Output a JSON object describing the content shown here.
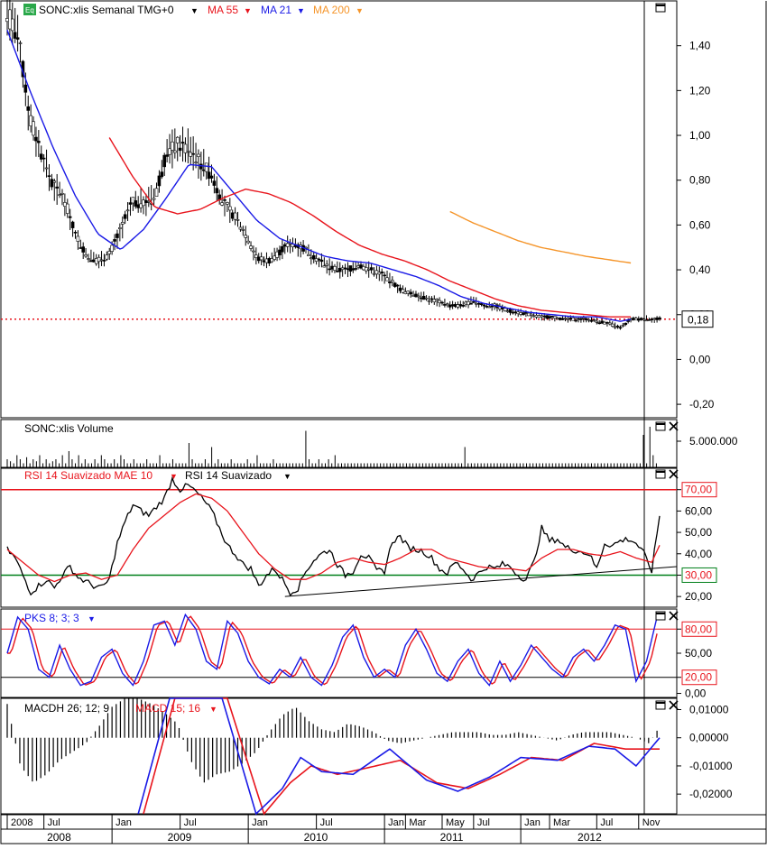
{
  "main": {
    "badge": "Eq",
    "label": "SONC:xlis Semanal TMG+0",
    "indicators": [
      {
        "label": "MA 55",
        "color": "#e8141c"
      },
      {
        "label": "MA 21",
        "color": "#1a1ae6"
      },
      {
        "label": "MA 200",
        "color": "#f5952a"
      }
    ]
  },
  "volume": {
    "label": "SONC:xlis Volume"
  },
  "rsi": {
    "label_red": "RSI 14 Suavizado MAE 10",
    "label_black": "RSI 14 Suavizado"
  },
  "pks": {
    "label": "PKS 8; 3; 3"
  },
  "macd": {
    "label_a": "MACDH 26; 12; 9",
    "label_b": "MACD 15; 16"
  },
  "colors": {
    "price": "#000000",
    "ma55": "#e8141c",
    "ma21": "#1a1ae6",
    "ma200": "#f5952a",
    "green_line": "#00801a",
    "signal": "#e8141c"
  },
  "chart_data": [
    {
      "type": "line",
      "title": "SONC:xlis Semanal TMG+0",
      "ylim": [
        -0.26,
        1.6
      ],
      "yticks": [
        "1,40",
        "1,20",
        "1,00",
        "0,80",
        "0,60",
        "0,40",
        "0,20",
        "0,00",
        "-0,20"
      ],
      "last_value_label": "0,18",
      "last_value": 0.18,
      "series": [
        {
          "name": "SONC:xlis",
          "x": [
            "2008-04",
            "2008-05",
            "2008-06",
            "2008-07",
            "2008-08",
            "2008-09",
            "2008-10",
            "2008-11",
            "2008-12",
            "2009-01",
            "2009-02",
            "2009-03",
            "2009-04",
            "2009-05",
            "2009-06",
            "2009-07",
            "2009-08",
            "2009-09",
            "2009-10",
            "2009-11",
            "2009-12",
            "2010-01",
            "2010-02",
            "2010-03",
            "2010-04",
            "2010-05",
            "2010-06",
            "2010-07",
            "2010-08",
            "2010-09",
            "2010-10",
            "2010-11",
            "2010-12",
            "2011-01",
            "2011-02",
            "2011-03",
            "2011-04",
            "2011-05",
            "2011-06",
            "2011-07",
            "2011-08",
            "2011-09",
            "2011-10",
            "2011-11",
            "2011-12",
            "2012-01",
            "2012-02",
            "2012-03",
            "2012-04",
            "2012-05",
            "2012-06",
            "2012-07",
            "2012-08",
            "2012-09",
            "2012-10",
            "2012-11"
          ],
          "y": [
            1.55,
            1.42,
            1.08,
            0.92,
            0.78,
            0.72,
            0.56,
            0.46,
            0.44,
            0.47,
            0.58,
            0.7,
            0.7,
            0.72,
            0.92,
            0.96,
            0.94,
            0.88,
            0.82,
            0.7,
            0.64,
            0.56,
            0.45,
            0.44,
            0.48,
            0.52,
            0.5,
            0.46,
            0.42,
            0.4,
            0.4,
            0.42,
            0.4,
            0.38,
            0.34,
            0.3,
            0.29,
            0.27,
            0.26,
            0.24,
            0.24,
            0.26,
            0.24,
            0.24,
            0.22,
            0.21,
            0.2,
            0.19,
            0.19,
            0.18,
            0.18,
            0.18,
            0.17,
            0.16,
            0.14,
            0.18
          ]
        },
        {
          "name": "MA 21",
          "x": [
            "2008-04",
            "2008-06",
            "2008-08",
            "2008-10",
            "2008-12",
            "2009-02",
            "2009-04",
            "2009-06",
            "2009-08",
            "2009-10",
            "2009-12",
            "2010-02",
            "2010-04",
            "2010-06",
            "2010-08",
            "2010-10",
            "2010-12",
            "2011-02",
            "2011-04",
            "2011-06",
            "2011-08",
            "2011-10",
            "2011-12",
            "2012-02",
            "2012-04",
            "2012-06",
            "2012-08",
            "2012-10",
            "2012-11"
          ],
          "y": [
            1.47,
            1.2,
            0.95,
            0.73,
            0.56,
            0.49,
            0.58,
            0.72,
            0.87,
            0.86,
            0.74,
            0.62,
            0.54,
            0.5,
            0.46,
            0.44,
            0.43,
            0.4,
            0.37,
            0.33,
            0.28,
            0.25,
            0.23,
            0.21,
            0.2,
            0.19,
            0.19,
            0.17,
            0.18
          ]
        },
        {
          "name": "MA 55",
          "x": [
            "2009-01",
            "2009-03",
            "2009-05",
            "2009-07",
            "2009-09",
            "2009-11",
            "2010-01",
            "2010-03",
            "2010-05",
            "2010-07",
            "2010-09",
            "2010-11",
            "2011-01",
            "2011-03",
            "2011-05",
            "2011-07",
            "2011-09",
            "2011-11",
            "2012-01",
            "2012-03",
            "2012-05",
            "2012-07",
            "2012-09",
            "2012-11"
          ],
          "y": [
            0.99,
            0.82,
            0.68,
            0.65,
            0.67,
            0.72,
            0.76,
            0.74,
            0.7,
            0.64,
            0.57,
            0.51,
            0.47,
            0.44,
            0.4,
            0.35,
            0.31,
            0.27,
            0.24,
            0.22,
            0.21,
            0.2,
            0.19,
            0.19
          ]
        },
        {
          "name": "MA 200",
          "x": [
            "2011-07",
            "2011-09",
            "2011-11",
            "2012-01",
            "2012-03",
            "2012-05",
            "2012-07",
            "2012-09",
            "2012-11"
          ],
          "y": [
            0.66,
            0.61,
            0.57,
            0.53,
            0.5,
            0.48,
            0.46,
            0.445,
            0.43
          ]
        }
      ]
    },
    {
      "type": "bar",
      "title": "SONC:xlis Volume",
      "yticks": [
        "5.000.000"
      ],
      "values": [
        2,
        1.5,
        1,
        3,
        2,
        1,
        2.5,
        1,
        2,
        1.5,
        3,
        1,
        2,
        1,
        1.5,
        2,
        1,
        3,
        1,
        4,
        2,
        1,
        3,
        1,
        2,
        1,
        1,
        2,
        1,
        3,
        2,
        1,
        1,
        2,
        1,
        3,
        2,
        1,
        1,
        2,
        1,
        1,
        1,
        2,
        1,
        1,
        1,
        3,
        1,
        1,
        1,
        2,
        1,
        1,
        1,
        1,
        6,
        2,
        1,
        1,
        1,
        2,
        1,
        5,
        1,
        2,
        1,
        1,
        1,
        2,
        1,
        1,
        1,
        1,
        2,
        1,
        1,
        3,
        1,
        1,
        1,
        1,
        2,
        1,
        1,
        1,
        1,
        1,
        1,
        1,
        1,
        1,
        9,
        2,
        1,
        1,
        2,
        1,
        1,
        2,
        1,
        3,
        1,
        1,
        1,
        1,
        1,
        1,
        1,
        1,
        1,
        1,
        1,
        1,
        1,
        1,
        1,
        1,
        1,
        1,
        1,
        1,
        1,
        1,
        1,
        1,
        1,
        1,
        1,
        1,
        1,
        1,
        1,
        1,
        1,
        1,
        1,
        1,
        1,
        1,
        1,
        5,
        1,
        1,
        1,
        1,
        1,
        1,
        1,
        1,
        1,
        1,
        1,
        1,
        1,
        1,
        1,
        1,
        1,
        1,
        1,
        1,
        1,
        1,
        1,
        1,
        1,
        1,
        1,
        1,
        1,
        1,
        1,
        1,
        1,
        1,
        1,
        1,
        1,
        1,
        1,
        1,
        1,
        1,
        1,
        1,
        1,
        1,
        1,
        1,
        1,
        1,
        1,
        1,
        1,
        1,
        8,
        1,
        10,
        3,
        1
      ],
      "ylim": [
        0,
        10
      ]
    },
    {
      "type": "line",
      "title": "RSI 14 Suavizado MAE 10 / RSI 14 Suavizado",
      "ylim": [
        15,
        80
      ],
      "yticks": [
        "70,00",
        "60,00",
        "50,00",
        "40,00",
        "30,00",
        "20,00"
      ],
      "reference_lines": [
        70,
        30
      ],
      "series": [
        {
          "name": "RSI 14 Suavizado",
          "x": [
            0,
            3,
            6,
            9,
            12,
            15,
            18,
            21,
            24,
            27,
            30,
            33,
            36,
            39,
            42,
            45,
            48,
            51,
            54,
            57,
            60,
            63,
            66,
            69,
            72,
            75,
            78,
            81,
            84,
            87,
            90,
            93,
            96,
            99,
            102,
            105,
            108,
            111,
            114,
            117,
            120,
            123,
            126,
            129,
            132,
            135,
            138,
            141,
            144,
            147,
            150,
            153,
            156,
            159,
            162,
            165,
            168,
            171,
            174,
            177,
            180,
            183,
            186,
            189,
            192,
            195,
            198,
            201,
            204,
            207,
            210,
            213,
            216,
            219,
            222,
            225,
            228,
            231,
            234,
            237,
            240,
            243,
            246,
            249
          ],
          "y": [
            42,
            38,
            30,
            22,
            25,
            28,
            24,
            30,
            34,
            29,
            27,
            25,
            24,
            28,
            45,
            55,
            63,
            60,
            58,
            62,
            66,
            75,
            70,
            72,
            69,
            65,
            60,
            52,
            44,
            40,
            35,
            33,
            25,
            30,
            33,
            28,
            22,
            24,
            32,
            37,
            40,
            42,
            35,
            30,
            32,
            40,
            38,
            32,
            32,
            46,
            48,
            43,
            42,
            41,
            38,
            33,
            31,
            36,
            33,
            28,
            31,
            34,
            33,
            35,
            34,
            30,
            28,
            36,
            52,
            46,
            47,
            43,
            42,
            41,
            40,
            33,
            45,
            44,
            46,
            47,
            45,
            40,
            32,
            58
          ]
        },
        {
          "name": "RSI 14 Suavizado MAE 10",
          "x": [
            0,
            6,
            12,
            18,
            24,
            30,
            36,
            42,
            48,
            54,
            60,
            66,
            72,
            78,
            84,
            90,
            96,
            102,
            108,
            114,
            120,
            126,
            132,
            138,
            144,
            150,
            156,
            162,
            168,
            174,
            180,
            186,
            192,
            198,
            204,
            210,
            216,
            222,
            228,
            234,
            240,
            246,
            249
          ],
          "y": [
            42,
            36,
            30,
            27,
            30,
            31,
            28,
            30,
            42,
            52,
            58,
            64,
            68,
            66,
            60,
            50,
            40,
            33,
            28,
            28,
            31,
            36,
            38,
            36,
            35,
            38,
            42,
            42,
            38,
            36,
            34,
            33,
            33,
            32,
            38,
            42,
            42,
            40,
            39,
            41,
            38,
            36,
            44
          ]
        }
      ]
    },
    {
      "type": "line",
      "title": "PKS 8; 3; 3",
      "ylim": [
        -5,
        105
      ],
      "yticks": [
        "80,00",
        "50,00",
        "20,00",
        "0,00"
      ],
      "reference_lines": [
        80,
        20
      ],
      "series": [
        {
          "name": "PKS",
          "x": [
            0,
            4,
            8,
            12,
            16,
            20,
            24,
            28,
            32,
            36,
            40,
            44,
            48,
            52,
            56,
            60,
            64,
            68,
            72,
            76,
            80,
            84,
            88,
            92,
            96,
            100,
            104,
            108,
            112,
            116,
            120,
            124,
            128,
            132,
            136,
            140,
            144,
            148,
            152,
            156,
            160,
            164,
            168,
            172,
            176,
            180,
            184,
            188,
            192,
            196,
            200,
            204,
            208,
            212,
            216,
            220,
            224,
            228,
            232,
            236,
            240,
            244,
            248
          ],
          "y": [
            50,
            95,
            80,
            30,
            20,
            60,
            30,
            10,
            15,
            45,
            55,
            25,
            10,
            40,
            85,
            90,
            60,
            98,
            80,
            40,
            30,
            90,
            75,
            40,
            20,
            12,
            30,
            20,
            45,
            20,
            10,
            35,
            70,
            85,
            45,
            20,
            30,
            20,
            60,
            80,
            55,
            25,
            15,
            40,
            55,
            25,
            10,
            40,
            15,
            35,
            60,
            45,
            30,
            20,
            45,
            55,
            40,
            60,
            85,
            80,
            15,
            40,
            95
          ]
        }
      ]
    },
    {
      "type": "bar",
      "title": "MACDH 26; 12; 9",
      "ylim": [
        -0.027,
        0.014
      ],
      "yticks": [
        "0,01000",
        "0,00000",
        "-0,01000",
        "-0,02000"
      ],
      "series": [
        {
          "name": "MACDH",
          "x": [
            0,
            5,
            10,
            15,
            20,
            25,
            30,
            35,
            40,
            45,
            50,
            55,
            60,
            65,
            70,
            75,
            80,
            85,
            90,
            95,
            100,
            105,
            110,
            115,
            120,
            125,
            130,
            135,
            140,
            145,
            150,
            155,
            160,
            165,
            170,
            175,
            180,
            185,
            190,
            195,
            200,
            205,
            210,
            215,
            220,
            225,
            230,
            235,
            240,
            245,
            249
          ],
          "y": [
            0.012,
            -0.01,
            -0.016,
            -0.013,
            -0.008,
            -0.005,
            -0.002,
            0.004,
            0.011,
            0.014,
            0.014,
            0.012,
            0.009,
            0.005,
            -0.008,
            -0.016,
            -0.013,
            -0.012,
            -0.009,
            -0.005,
            0.002,
            0.008,
            0.011,
            0.006,
            0.003,
            0.002,
            0.005,
            0.004,
            0.002,
            -0.001,
            -0.002,
            -0.001,
            0.0,
            0.001,
            0.002,
            0.002,
            0.002,
            0.001,
            0.001,
            0.002,
            0.001,
            0.0,
            -0.001,
            0.001,
            0.002,
            0.002,
            0.002,
            0.001,
            0.0,
            -0.002,
            0.004
          ]
        }
      ]
    }
  ],
  "xaxis": {
    "month_labels": [
      {
        "t": 0,
        "label": "2008"
      },
      {
        "t": 14,
        "label": "Jul"
      },
      {
        "t": 40,
        "label": "Jan"
      },
      {
        "t": 66,
        "label": "Jul"
      },
      {
        "t": 92,
        "label": "Jan"
      },
      {
        "t": 118,
        "label": "Jul"
      },
      {
        "t": 144,
        "label": "Jan"
      },
      {
        "t": 152,
        "label": "Mar"
      },
      {
        "t": 166,
        "label": "May"
      },
      {
        "t": 178,
        "label": "Jul"
      },
      {
        "t": 196,
        "label": "Jan"
      },
      {
        "t": 207,
        "label": "Mar"
      },
      {
        "t": 225,
        "label": "Jul"
      },
      {
        "t": 241,
        "label": "Nov"
      }
    ],
    "year_labels": [
      "2008",
      "2009",
      "2010",
      "2011",
      "2012"
    ]
  }
}
